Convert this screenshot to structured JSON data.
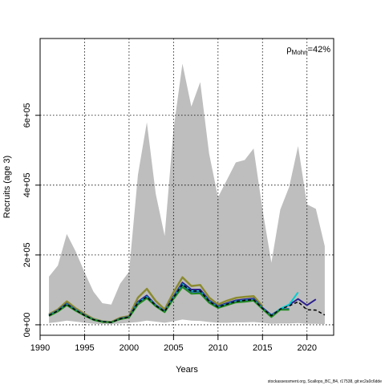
{
  "footer_text": "stockassessment.org, Scallops_BC_B4, r17538, git:ec2a0c6dde",
  "chart_data": {
    "type": "line",
    "title": "",
    "xlabel": "Years",
    "ylabel": "Recruits (age 3)",
    "xlim": [
      1990,
      2023
    ],
    "ylim": [
      -30000,
      820000
    ],
    "grid": true,
    "x_ticks": [
      1990,
      1995,
      2000,
      2005,
      2010,
      2015,
      2020
    ],
    "y_ticks": [
      0,
      200000,
      400000,
      600000
    ],
    "y_tick_labels": [
      "0e+00",
      "2e+05",
      "4e+05",
      "6e+05"
    ],
    "annotation": {
      "symbol": "ρ",
      "subscript": "Mohn",
      "text": "=42%"
    },
    "confidence_band": {
      "color": "#bebebe",
      "x": [
        1991,
        1992,
        1993,
        1994,
        1995,
        1996,
        1997,
        1998,
        1999,
        2000,
        2001,
        2002,
        2003,
        2004,
        2005,
        2006,
        2007,
        2008,
        2009,
        2010,
        2011,
        2012,
        2013,
        2014,
        2015,
        2016,
        2017,
        2018,
        2019,
        2020,
        2021,
        2022
      ],
      "upper": [
        138000,
        170000,
        260000,
        210000,
        150000,
        95000,
        62000,
        58000,
        118000,
        152000,
        430000,
        580000,
        375000,
        255000,
        560000,
        748000,
        625000,
        695000,
        490000,
        365000,
        415000,
        465000,
        472000,
        505000,
        330000,
        178000,
        330000,
        395000,
        512000,
        345000,
        332000,
        225000
      ],
      "lower": [
        5000,
        8000,
        12000,
        9000,
        6000,
        3000,
        2000,
        2000,
        4000,
        6000,
        8000,
        12000,
        9000,
        6000,
        10000,
        15000,
        12000,
        11000,
        8000,
        6000,
        6000,
        7000,
        7000,
        8000,
        6000,
        3000,
        4000,
        4000,
        5000,
        3000,
        3000,
        2000
      ]
    },
    "series": [
      {
        "name": "",
        "color": "#8b8b2f",
        "width": 2.5,
        "dash": "",
        "x_start": 1991,
        "values": [
          30000,
          44000,
          67000,
          47000,
          31000,
          17000,
          10000,
          8000,
          20000,
          25000,
          78000,
          103000,
          68000,
          44000,
          93000,
          136000,
          111000,
          114000,
          78000,
          58000,
          69000,
          77000,
          80000,
          82000,
          53000
        ]
      },
      {
        "name": "",
        "color": "#2b1f8f",
        "width": 2,
        "dash": "",
        "x_start": 1991,
        "values": [
          28000,
          41000,
          61000,
          43000,
          28000,
          15000,
          9000,
          7000,
          18000,
          23000,
          66000,
          84000,
          57000,
          39000,
          81000,
          121000,
          101000,
          101000,
          70000,
          53000,
          62000,
          70000,
          73000,
          75000,
          49000,
          28000,
          45000,
          57000,
          74000,
          56000,
          73000
        ]
      },
      {
        "name": "",
        "color": "#00ced1",
        "width": 2,
        "dash": "",
        "x_start": 1991,
        "values": [
          27000,
          40000,
          59000,
          42000,
          27000,
          15000,
          9000,
          7000,
          17000,
          22000,
          63000,
          80000,
          55000,
          38000,
          78000,
          116000,
          96000,
          96000,
          67000,
          51000,
          59000,
          67000,
          70000,
          72000,
          47000,
          26000,
          46000,
          58000,
          93000
        ]
      },
      {
        "name": "",
        "color": "#1e6fa0",
        "width": 2,
        "dash": "",
        "x_start": 1991,
        "values": [
          26000,
          39000,
          58000,
          41000,
          27000,
          14000,
          9000,
          7000,
          17000,
          22000,
          61000,
          78000,
          54000,
          37000,
          76000,
          113000,
          94000,
          94000,
          66000,
          50000,
          58000,
          66000,
          69000,
          71000,
          46000,
          25000,
          44000,
          46000
        ]
      },
      {
        "name": "",
        "color": "#228b22",
        "width": 2,
        "dash": "",
        "x_start": 1991,
        "values": [
          25000,
          38000,
          56000,
          40000,
          26000,
          14000,
          8000,
          7000,
          16000,
          21000,
          58000,
          76000,
          53000,
          36000,
          74000,
          108000,
          89000,
          90000,
          63000,
          48000,
          56000,
          64000,
          66000,
          69000,
          45000,
          22000,
          43000,
          43000
        ]
      },
      {
        "name": "",
        "color": "#000000",
        "width": 1.5,
        "dash": "4,3",
        "x_start": 1991,
        "values": [
          27000,
          40000,
          59000,
          42000,
          27000,
          15000,
          9000,
          7000,
          17000,
          22000,
          63000,
          80000,
          55000,
          38000,
          78000,
          116000,
          96000,
          97000,
          67000,
          51000,
          59000,
          67000,
          70000,
          72000,
          47000,
          26000,
          45000,
          54000,
          66000,
          43000,
          42000,
          28000
        ]
      }
    ]
  }
}
